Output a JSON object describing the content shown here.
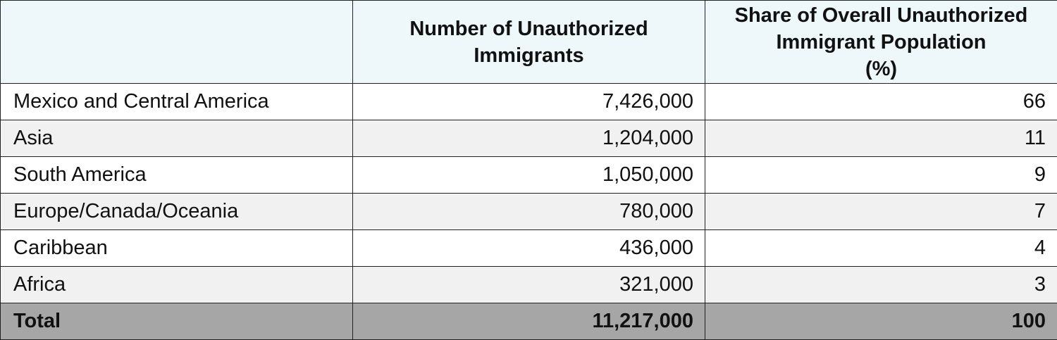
{
  "chart_data": {
    "type": "table",
    "title": "",
    "columns": [
      "",
      "Number of Unauthorized Immigrants",
      "Share of Overall Unauthorized Immigrant Population (%)"
    ],
    "header_lines": {
      "number": [
        "Number of Unauthorized",
        "Immigrants"
      ],
      "share": [
        "Share of Overall Unauthorized",
        "Immigrant Population",
        "(%)"
      ]
    },
    "rows": [
      {
        "region": "Mexico and Central America",
        "number": "7,426,000",
        "share": "66"
      },
      {
        "region": "Asia",
        "number": "1,204,000",
        "share": "11"
      },
      {
        "region": "South America",
        "number": "1,050,000",
        "share": "9"
      },
      {
        "region": "Europe/Canada/Oceania",
        "number": "780,000",
        "share": "7"
      },
      {
        "region": "Caribbean",
        "number": "436,000",
        "share": "4"
      },
      {
        "region": "Africa",
        "number": "321,000",
        "share": "3"
      }
    ],
    "total": {
      "region": "Total",
      "number": "11,217,000",
      "share": "100"
    },
    "colors": {
      "header_bg": "#eef7f9",
      "alt_row_bg": "#f1f1f1",
      "total_bg": "#a6a6a6",
      "border": "#222222"
    }
  }
}
